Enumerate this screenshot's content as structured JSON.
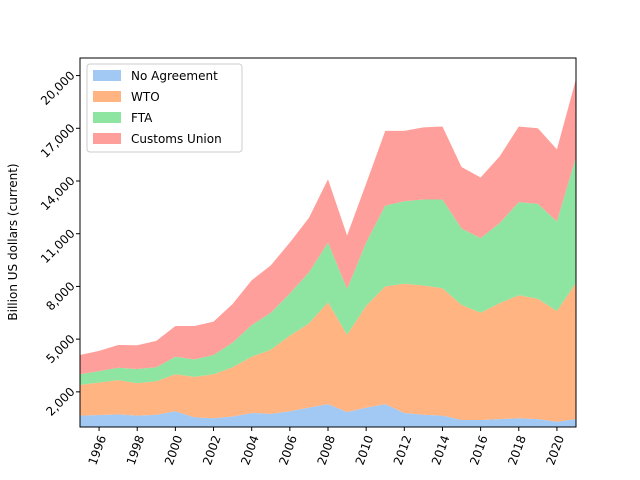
{
  "chart_data": {
    "type": "area",
    "stacked": true,
    "ylabel": "Billion US dollars (current)",
    "xlabel": "",
    "xlim": [
      1995,
      2021
    ],
    "ylim": [
      0,
      21000
    ],
    "x_ticks": [
      1996,
      1998,
      2000,
      2002,
      2004,
      2006,
      2008,
      2010,
      2012,
      2014,
      2016,
      2018,
      2020
    ],
    "y_ticks": [
      2000,
      5000,
      8000,
      11000,
      14000,
      17000,
      20000
    ],
    "y_tick_labels": [
      "2,000",
      "5,000",
      "8,000",
      "11,000",
      "14,000",
      "17,000",
      "20,000"
    ],
    "legend_position": "top-left",
    "grid": false,
    "x": [
      1995,
      1996,
      1997,
      1998,
      1999,
      2000,
      2001,
      2002,
      2003,
      2004,
      2005,
      2006,
      2007,
      2008,
      2009,
      2010,
      2011,
      2012,
      2013,
      2014,
      2015,
      2016,
      2017,
      2018,
      2019,
      2020,
      2021
    ],
    "series": [
      {
        "name": "No Agreement",
        "color": "#a1c9f4",
        "values": [
          650,
          680,
          720,
          650,
          700,
          900,
          550,
          500,
          600,
          800,
          750,
          900,
          1100,
          1300,
          850,
          1100,
          1300,
          800,
          700,
          650,
          400,
          400,
          450,
          500,
          450,
          300,
          450
        ]
      },
      {
        "name": "WTO",
        "color": "#ffb482",
        "values": [
          1750,
          1850,
          1950,
          1850,
          1900,
          2100,
          2300,
          2500,
          2800,
          3200,
          3650,
          4300,
          4800,
          5800,
          4400,
          5800,
          6700,
          7350,
          7350,
          7250,
          6550,
          6100,
          6600,
          7000,
          6850,
          6300,
          7750
        ]
      },
      {
        "name": "FTA",
        "color": "#8de5a1",
        "values": [
          600,
          650,
          700,
          800,
          800,
          1000,
          1000,
          1100,
          1400,
          1800,
          2100,
          2400,
          2900,
          3400,
          2600,
          3600,
          4600,
          4700,
          4900,
          5050,
          4350,
          4250,
          4550,
          5300,
          5400,
          5100,
          7150
        ]
      },
      {
        "name": "Customs Union",
        "color": "#ff9f9b",
        "values": [
          1100,
          1150,
          1300,
          1350,
          1500,
          1750,
          1900,
          1900,
          2200,
          2550,
          2700,
          2900,
          3100,
          3600,
          3050,
          3350,
          4250,
          4000,
          4100,
          4150,
          3500,
          3450,
          3800,
          4300,
          4300,
          4100,
          4450
        ]
      }
    ]
  }
}
